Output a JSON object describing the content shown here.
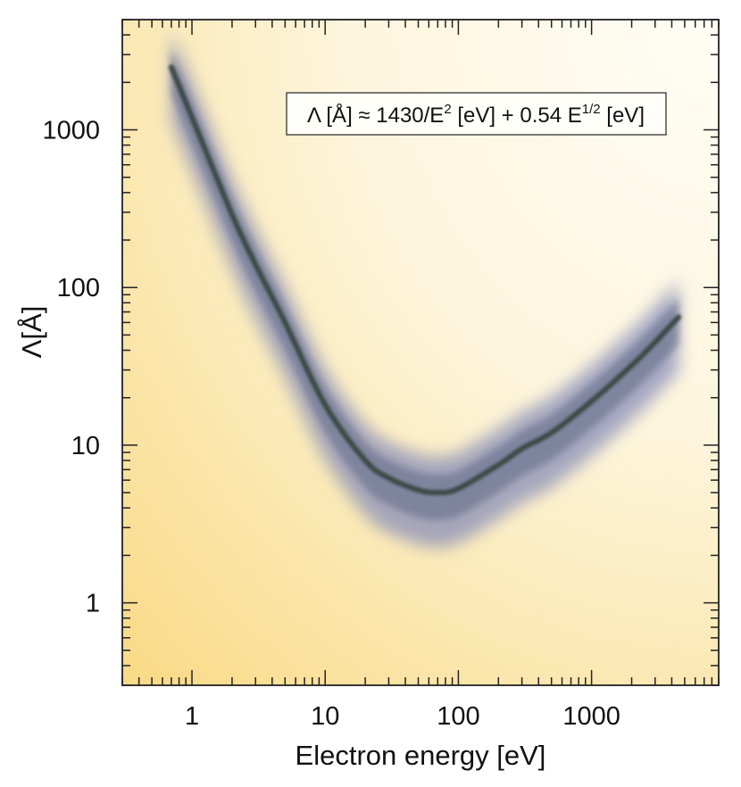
{
  "chart_data": {
    "type": "line",
    "title": "",
    "xlabel": "Electron energy [eV]",
    "ylabel_parts": {
      "symbol": "Λ",
      "unit": "[Å]"
    },
    "xscale": "log",
    "yscale": "log",
    "xlim": [
      0.3,
      9000
    ],
    "ylim": [
      0.3,
      5000
    ],
    "x_ticks": [
      1,
      10,
      100,
      1000
    ],
    "x_tick_labels": [
      "1",
      "10",
      "100",
      "1000"
    ],
    "y_ticks": [
      1,
      10,
      100,
      1000
    ],
    "y_tick_labels": [
      "1",
      "10",
      "100",
      "1000"
    ],
    "grid": false,
    "legend": "none",
    "annotation": {
      "parts": [
        "Λ [Å] ≈ 1430/E",
        "2",
        " [eV] + 0.54 E",
        "1/2",
        " [eV]"
      ],
      "placement": "top-right"
    },
    "series": [
      {
        "x": [
          0.7,
          1,
          2,
          3,
          5,
          10,
          20,
          30,
          50,
          70,
          100,
          200,
          300,
          500,
          1000,
          2000,
          3000,
          4500
        ],
        "y": [
          2500,
          1200,
          290,
          140,
          60,
          18,
          8,
          6.2,
          5.2,
          5.0,
          5.3,
          7.5,
          9.5,
          12,
          19,
          32,
          45,
          65
        ],
        "band_upper_factor": 1.7,
        "band_lower_factor": 0.45
      }
    ],
    "colors": {
      "curve": "#3a4a45",
      "band": "#8a8fb8",
      "background_light": "#fdf8ea",
      "background_warm": "#f9dc8c"
    }
  }
}
